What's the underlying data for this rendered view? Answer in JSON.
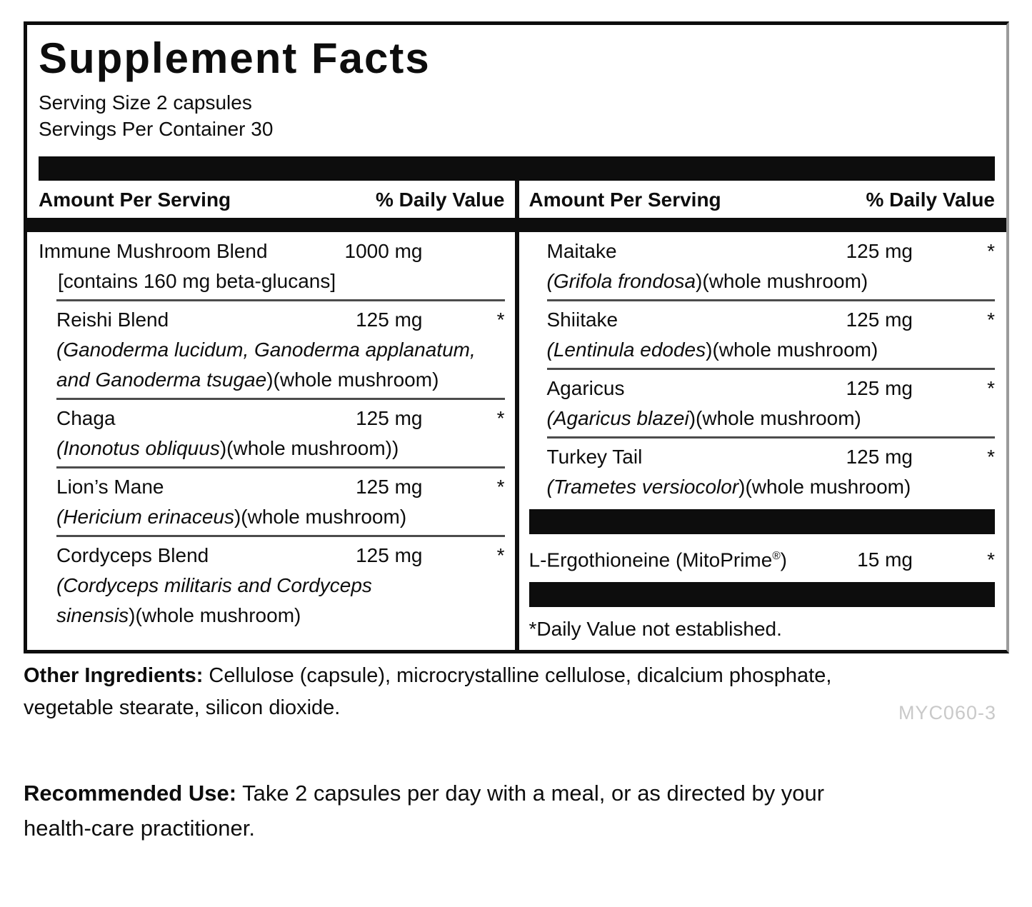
{
  "panel": {
    "title": "Supplement Facts",
    "serving_size": "Serving Size 2 capsules",
    "servings_per_container": "Servings Per Container 30",
    "header": {
      "amount": "Amount Per Serving",
      "daily_value": "% Daily Value"
    },
    "left_rows": [
      {
        "name": [
          {
            "t": "Immune Mushroom Blend"
          }
        ],
        "amount": "1000 mg",
        "dv": "",
        "indent": false,
        "desc": [
          [
            {
              "t": "[contains 160 mg beta-glucans]"
            }
          ]
        ],
        "sep": true
      },
      {
        "name": [
          {
            "t": "Reishi Blend"
          }
        ],
        "amount": "125 mg",
        "dv": "*",
        "indent": true,
        "desc": [
          [
            {
              "t": "(Ganoderma lucidum, Ganoderma applanatum,",
              "i": true
            }
          ],
          [
            {
              "t": "and Ganoderma tsugae",
              "i": true
            },
            {
              "t": ")(whole mushroom)"
            }
          ]
        ],
        "sep": true
      },
      {
        "name": [
          {
            "t": "Chaga"
          }
        ],
        "amount": "125 mg",
        "dv": "*",
        "indent": true,
        "desc": [
          [
            {
              "t": "(Inonotus obliquus",
              "i": true
            },
            {
              "t": ")(whole mushroom))"
            }
          ]
        ],
        "sep": true
      },
      {
        "name": [
          {
            "t": "Lion’s Mane"
          }
        ],
        "amount": "125 mg",
        "dv": "*",
        "indent": true,
        "desc": [
          [
            {
              "t": "(Hericium erinaceus",
              "i": true
            },
            {
              "t": ")(whole mushroom)"
            }
          ]
        ],
        "sep": true
      },
      {
        "name": [
          {
            "t": "Cordyceps Blend"
          }
        ],
        "amount": "125 mg",
        "dv": "*",
        "indent": true,
        "desc": [
          [
            {
              "t": "(Cordyceps militaris and Cordyceps",
              "i": true
            }
          ],
          [
            {
              "t": "sinensis",
              "i": true
            },
            {
              "t": ")(whole mushroom)"
            }
          ]
        ],
        "sep": false
      }
    ],
    "right_rows": [
      {
        "name": [
          {
            "t": "Maitake"
          }
        ],
        "amount": "125 mg",
        "dv": "*",
        "indent": true,
        "desc": [
          [
            {
              "t": "(Grifola frondosa",
              "i": true
            },
            {
              "t": ")(whole mushroom)"
            }
          ]
        ],
        "sep": true
      },
      {
        "name": [
          {
            "t": "Shiitake"
          }
        ],
        "amount": "125 mg",
        "dv": "*",
        "indent": true,
        "desc": [
          [
            {
              "t": "(Lentinula edodes",
              "i": true
            },
            {
              "t": ")(whole mushroom)"
            }
          ]
        ],
        "sep": true
      },
      {
        "name": [
          {
            "t": "Agaricus"
          }
        ],
        "amount": "125 mg",
        "dv": "*",
        "indent": true,
        "desc": [
          [
            {
              "t": "(Agaricus blazei",
              "i": true
            },
            {
              "t": ")(whole mushroom)"
            }
          ]
        ],
        "sep": true
      },
      {
        "name": [
          {
            "t": "Turkey Tail"
          }
        ],
        "amount": "125 mg",
        "dv": "*",
        "indent": true,
        "desc": [
          [
            {
              "t": "(Trametes versiocolor",
              "i": true
            },
            {
              "t": ")(whole mushroom)"
            }
          ]
        ],
        "sep": false,
        "bar_after": true
      },
      {
        "name": [
          {
            "t": "L-Ergothioneine (MitoPrime"
          },
          {
            "t": "®",
            "s": true
          },
          {
            "t": ")"
          }
        ],
        "amount": "15 mg",
        "dv": "*",
        "indent": false,
        "desc": [],
        "sep": false,
        "bar_after": true
      }
    ],
    "footnote": "*Daily Value not established."
  },
  "other_ingredients": {
    "label": "Other Ingredients:",
    "line1": " Cellulose (capsule), microcrystalline cellulose, dicalcium phosphate,",
    "line2": "vegetable stearate, silicon dioxide."
  },
  "product_code": "MYC060-3",
  "recommended_use": {
    "label": "Recommended Use:",
    "line1": " Take 2 capsules per day with a meal, or as directed by your",
    "line2": "health-care practitioner."
  },
  "colors": {
    "ink": "#0d0d0d",
    "separator": "#4c4c4c",
    "product_code_gray": "#c9c9c9"
  }
}
